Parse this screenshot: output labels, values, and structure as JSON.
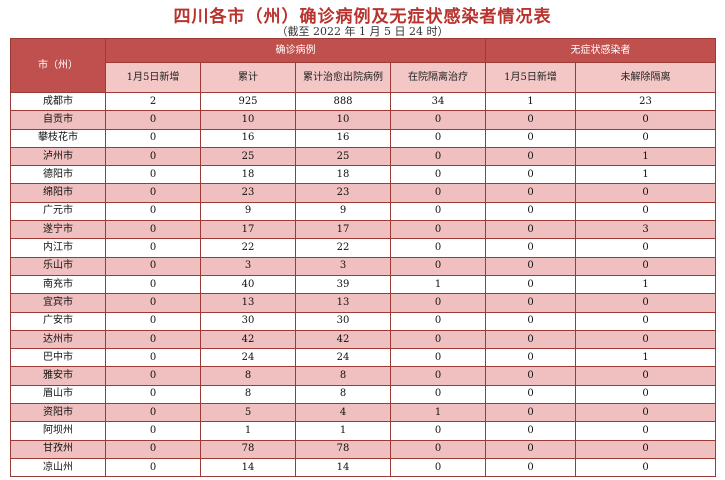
{
  "title": "四川各市（州）确诊病例及无症状感染者情况表",
  "subtitle": "（截至 2022 年 1 月 5 日 24 时）",
  "table": {
    "header_groups": [
      "市（州）",
      "确诊病例",
      "无症状感染者"
    ],
    "columns": [
      "1月5日新增",
      "累计",
      "累计治愈出院病例",
      "在院隔离治疗",
      "1月5日新增",
      "未解除隔离"
    ],
    "rows": [
      [
        "成都市",
        2,
        925,
        888,
        34,
        1,
        23
      ],
      [
        "自贡市",
        0,
        10,
        10,
        0,
        0,
        0
      ],
      [
        "攀枝花市",
        0,
        16,
        16,
        0,
        0,
        0
      ],
      [
        "泸州市",
        0,
        25,
        25,
        0,
        0,
        1
      ],
      [
        "德阳市",
        0,
        18,
        18,
        0,
        0,
        1
      ],
      [
        "绵阳市",
        0,
        23,
        23,
        0,
        0,
        0
      ],
      [
        "广元市",
        0,
        9,
        9,
        0,
        0,
        0
      ],
      [
        "遂宁市",
        0,
        17,
        17,
        0,
        0,
        3
      ],
      [
        "内江市",
        0,
        22,
        22,
        0,
        0,
        0
      ],
      [
        "乐山市",
        0,
        3,
        3,
        0,
        0,
        0
      ],
      [
        "南充市",
        0,
        40,
        39,
        1,
        0,
        1
      ],
      [
        "宜宾市",
        0,
        13,
        13,
        0,
        0,
        0
      ],
      [
        "广安市",
        0,
        30,
        30,
        0,
        0,
        0
      ],
      [
        "达州市",
        0,
        42,
        42,
        0,
        0,
        0
      ],
      [
        "巴中市",
        0,
        24,
        24,
        0,
        0,
        1
      ],
      [
        "雅安市",
        0,
        8,
        8,
        0,
        0,
        0
      ],
      [
        "眉山市",
        0,
        8,
        8,
        0,
        0,
        0
      ],
      [
        "资阳市",
        0,
        5,
        4,
        1,
        0,
        0
      ],
      [
        "阿坝州",
        0,
        1,
        1,
        0,
        0,
        0
      ],
      [
        "甘孜州",
        0,
        78,
        78,
        0,
        0,
        0
      ],
      [
        "凉山州",
        0,
        14,
        14,
        0,
        0,
        0
      ]
    ]
  }
}
